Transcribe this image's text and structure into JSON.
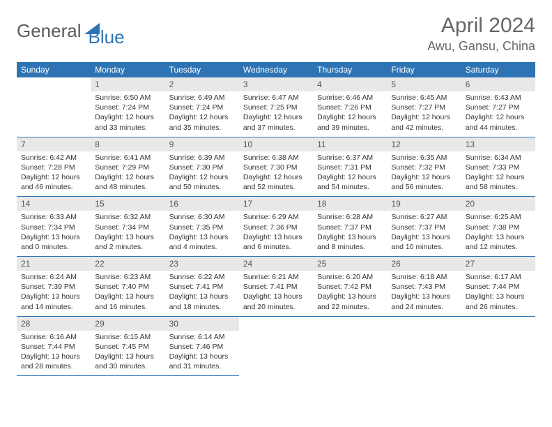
{
  "logo": {
    "part1": "General",
    "part2": "Blue"
  },
  "title": "April 2024",
  "location": "Awu, Gansu, China",
  "header_bg": "#2e74b5",
  "header_fg": "#ffffff",
  "daynum_bg": "#e8e8e8",
  "border_color": "#2e74b5",
  "weekdays": [
    "Sunday",
    "Monday",
    "Tuesday",
    "Wednesday",
    "Thursday",
    "Friday",
    "Saturday"
  ],
  "weeks": [
    [
      {
        "n": "",
        "sr": "",
        "ss": "",
        "dl": ""
      },
      {
        "n": "1",
        "sr": "Sunrise: 6:50 AM",
        "ss": "Sunset: 7:24 PM",
        "dl": "Daylight: 12 hours and 33 minutes."
      },
      {
        "n": "2",
        "sr": "Sunrise: 6:49 AM",
        "ss": "Sunset: 7:24 PM",
        "dl": "Daylight: 12 hours and 35 minutes."
      },
      {
        "n": "3",
        "sr": "Sunrise: 6:47 AM",
        "ss": "Sunset: 7:25 PM",
        "dl": "Daylight: 12 hours and 37 minutes."
      },
      {
        "n": "4",
        "sr": "Sunrise: 6:46 AM",
        "ss": "Sunset: 7:26 PM",
        "dl": "Daylight: 12 hours and 39 minutes."
      },
      {
        "n": "5",
        "sr": "Sunrise: 6:45 AM",
        "ss": "Sunset: 7:27 PM",
        "dl": "Daylight: 12 hours and 42 minutes."
      },
      {
        "n": "6",
        "sr": "Sunrise: 6:43 AM",
        "ss": "Sunset: 7:27 PM",
        "dl": "Daylight: 12 hours and 44 minutes."
      }
    ],
    [
      {
        "n": "7",
        "sr": "Sunrise: 6:42 AM",
        "ss": "Sunset: 7:28 PM",
        "dl": "Daylight: 12 hours and 46 minutes."
      },
      {
        "n": "8",
        "sr": "Sunrise: 6:41 AM",
        "ss": "Sunset: 7:29 PM",
        "dl": "Daylight: 12 hours and 48 minutes."
      },
      {
        "n": "9",
        "sr": "Sunrise: 6:39 AM",
        "ss": "Sunset: 7:30 PM",
        "dl": "Daylight: 12 hours and 50 minutes."
      },
      {
        "n": "10",
        "sr": "Sunrise: 6:38 AM",
        "ss": "Sunset: 7:30 PM",
        "dl": "Daylight: 12 hours and 52 minutes."
      },
      {
        "n": "11",
        "sr": "Sunrise: 6:37 AM",
        "ss": "Sunset: 7:31 PM",
        "dl": "Daylight: 12 hours and 54 minutes."
      },
      {
        "n": "12",
        "sr": "Sunrise: 6:35 AM",
        "ss": "Sunset: 7:32 PM",
        "dl": "Daylight: 12 hours and 56 minutes."
      },
      {
        "n": "13",
        "sr": "Sunrise: 6:34 AM",
        "ss": "Sunset: 7:33 PM",
        "dl": "Daylight: 12 hours and 58 minutes."
      }
    ],
    [
      {
        "n": "14",
        "sr": "Sunrise: 6:33 AM",
        "ss": "Sunset: 7:34 PM",
        "dl": "Daylight: 13 hours and 0 minutes."
      },
      {
        "n": "15",
        "sr": "Sunrise: 6:32 AM",
        "ss": "Sunset: 7:34 PM",
        "dl": "Daylight: 13 hours and 2 minutes."
      },
      {
        "n": "16",
        "sr": "Sunrise: 6:30 AM",
        "ss": "Sunset: 7:35 PM",
        "dl": "Daylight: 13 hours and 4 minutes."
      },
      {
        "n": "17",
        "sr": "Sunrise: 6:29 AM",
        "ss": "Sunset: 7:36 PM",
        "dl": "Daylight: 13 hours and 6 minutes."
      },
      {
        "n": "18",
        "sr": "Sunrise: 6:28 AM",
        "ss": "Sunset: 7:37 PM",
        "dl": "Daylight: 13 hours and 8 minutes."
      },
      {
        "n": "19",
        "sr": "Sunrise: 6:27 AM",
        "ss": "Sunset: 7:37 PM",
        "dl": "Daylight: 13 hours and 10 minutes."
      },
      {
        "n": "20",
        "sr": "Sunrise: 6:25 AM",
        "ss": "Sunset: 7:38 PM",
        "dl": "Daylight: 13 hours and 12 minutes."
      }
    ],
    [
      {
        "n": "21",
        "sr": "Sunrise: 6:24 AM",
        "ss": "Sunset: 7:39 PM",
        "dl": "Daylight: 13 hours and 14 minutes."
      },
      {
        "n": "22",
        "sr": "Sunrise: 6:23 AM",
        "ss": "Sunset: 7:40 PM",
        "dl": "Daylight: 13 hours and 16 minutes."
      },
      {
        "n": "23",
        "sr": "Sunrise: 6:22 AM",
        "ss": "Sunset: 7:41 PM",
        "dl": "Daylight: 13 hours and 18 minutes."
      },
      {
        "n": "24",
        "sr": "Sunrise: 6:21 AM",
        "ss": "Sunset: 7:41 PM",
        "dl": "Daylight: 13 hours and 20 minutes."
      },
      {
        "n": "25",
        "sr": "Sunrise: 6:20 AM",
        "ss": "Sunset: 7:42 PM",
        "dl": "Daylight: 13 hours and 22 minutes."
      },
      {
        "n": "26",
        "sr": "Sunrise: 6:18 AM",
        "ss": "Sunset: 7:43 PM",
        "dl": "Daylight: 13 hours and 24 minutes."
      },
      {
        "n": "27",
        "sr": "Sunrise: 6:17 AM",
        "ss": "Sunset: 7:44 PM",
        "dl": "Daylight: 13 hours and 26 minutes."
      }
    ],
    [
      {
        "n": "28",
        "sr": "Sunrise: 6:16 AM",
        "ss": "Sunset: 7:44 PM",
        "dl": "Daylight: 13 hours and 28 minutes."
      },
      {
        "n": "29",
        "sr": "Sunrise: 6:15 AM",
        "ss": "Sunset: 7:45 PM",
        "dl": "Daylight: 13 hours and 30 minutes."
      },
      {
        "n": "30",
        "sr": "Sunrise: 6:14 AM",
        "ss": "Sunset: 7:46 PM",
        "dl": "Daylight: 13 hours and 31 minutes."
      },
      {
        "n": "",
        "sr": "",
        "ss": "",
        "dl": ""
      },
      {
        "n": "",
        "sr": "",
        "ss": "",
        "dl": ""
      },
      {
        "n": "",
        "sr": "",
        "ss": "",
        "dl": ""
      },
      {
        "n": "",
        "sr": "",
        "ss": "",
        "dl": ""
      }
    ]
  ]
}
